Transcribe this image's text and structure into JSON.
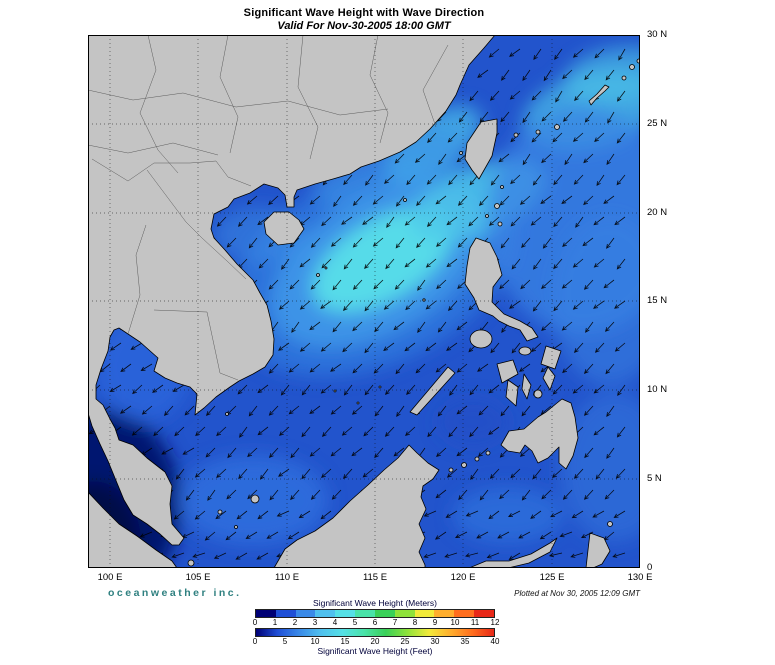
{
  "header": {
    "title": "Significant Wave Height with Wave Direction",
    "subtitle": "Valid For Nov-30-2005 18:00 GMT"
  },
  "map": {
    "lon_ticks": [
      "100 E",
      "105 E",
      "110 E",
      "115 E",
      "120 E",
      "125 E",
      "130 E"
    ],
    "lat_ticks": [
      "30 N",
      "25 N",
      "20 N",
      "15 N",
      "10 N",
      "5 N",
      "0"
    ]
  },
  "footer": {
    "brand": "oceanweather inc.",
    "plotted": "Plotted at Nov 30, 2005 12:09 GMT"
  },
  "legend": {
    "meters_title": "Significant Wave Height (Meters)",
    "feet_title": "Significant Wave Height (Feet)",
    "meters_ticks": [
      "0",
      "1",
      "2",
      "3",
      "4",
      "5",
      "6",
      "7",
      "8",
      "9",
      "10",
      "11",
      "12"
    ],
    "feet_ticks": [
      "0",
      "5",
      "10",
      "15",
      "20",
      "25",
      "30",
      "35",
      "40"
    ],
    "colors": [
      "#000075",
      "#1F4FD6",
      "#3A8AE8",
      "#4FC0EE",
      "#55E0E6",
      "#49E3A8",
      "#39D058",
      "#8FE23A",
      "#F2EA3A",
      "#FFAE2E",
      "#FF6E1E",
      "#E82818"
    ]
  }
}
